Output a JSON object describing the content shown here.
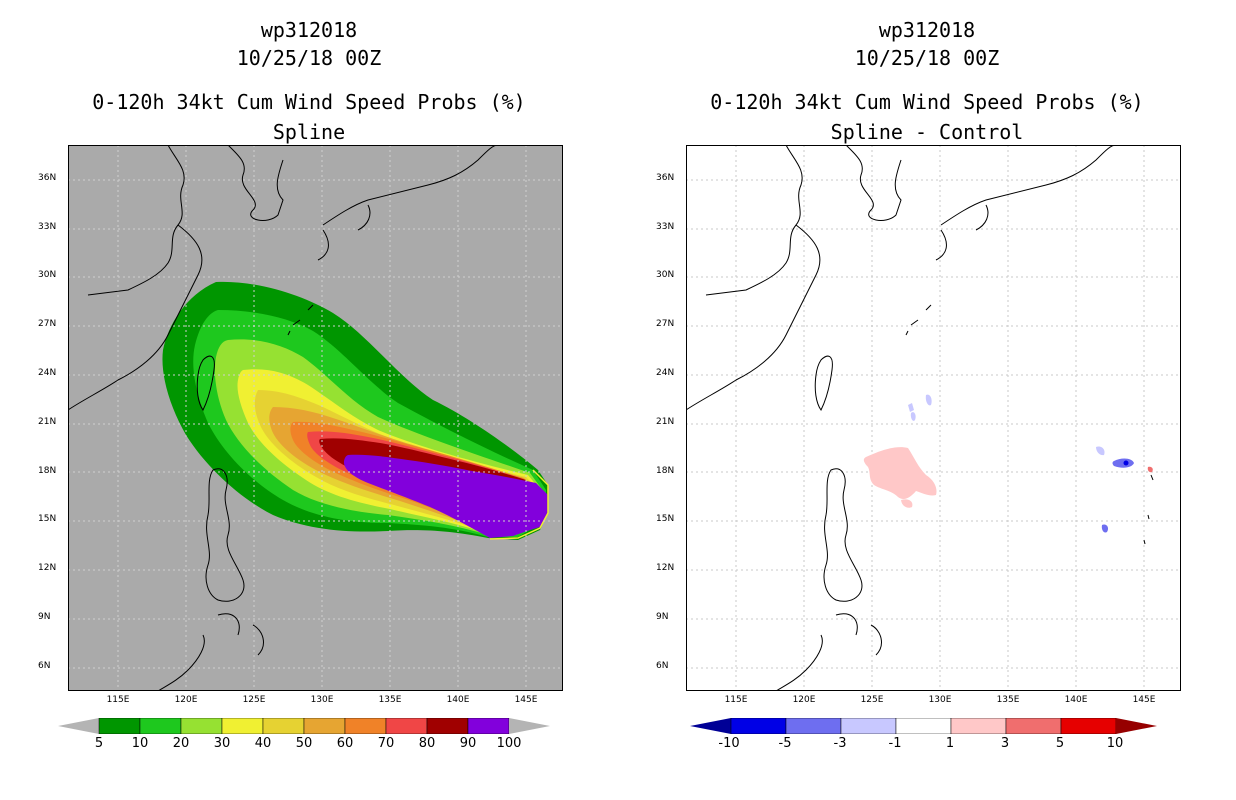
{
  "left": {
    "title_line1": "wp312018",
    "title_line2": "10/25/18 00Z",
    "title_line3": "0-120h 34kt Cum Wind Speed Probs (%)",
    "title_line4": "Spline",
    "background": "#aaaaaa",
    "colorbar": {
      "labels": [
        "5",
        "10",
        "20",
        "30",
        "40",
        "50",
        "60",
        "70",
        "80",
        "90",
        "100"
      ],
      "colors": [
        "#009600",
        "#1ec81e",
        "#96e132",
        "#f0f032",
        "#e6d232",
        "#e6a532",
        "#f08228",
        "#f04646",
        "#a00000",
        "#8200dc"
      ],
      "end_low": "#b4b4b4",
      "end_high": "#b4b4b4"
    }
  },
  "right": {
    "title_line1": "wp312018",
    "title_line2": "10/25/18 00Z",
    "title_line3": "0-120h 34kt Cum Wind Speed Probs (%)",
    "title_line4": "Spline - Control",
    "background": "#ffffff",
    "colorbar": {
      "labels": [
        "-10",
        "-5",
        "-3",
        "-1",
        "1",
        "3",
        "5",
        "10"
      ],
      "colors": [
        "#0000e6",
        "#6e6ef0",
        "#c8c8ff",
        "#ffffff",
        "#ffc8c8",
        "#f06e6e",
        "#e60000"
      ],
      "end_low": "#000096",
      "end_high": "#960000"
    }
  },
  "axes": {
    "lat_labels": [
      "36N",
      "33N",
      "30N",
      "27N",
      "24N",
      "21N",
      "18N",
      "15N",
      "12N",
      "9N",
      "6N"
    ],
    "lon_labels": [
      "115E",
      "120E",
      "125E",
      "130E",
      "135E",
      "140E",
      "145E"
    ]
  }
}
